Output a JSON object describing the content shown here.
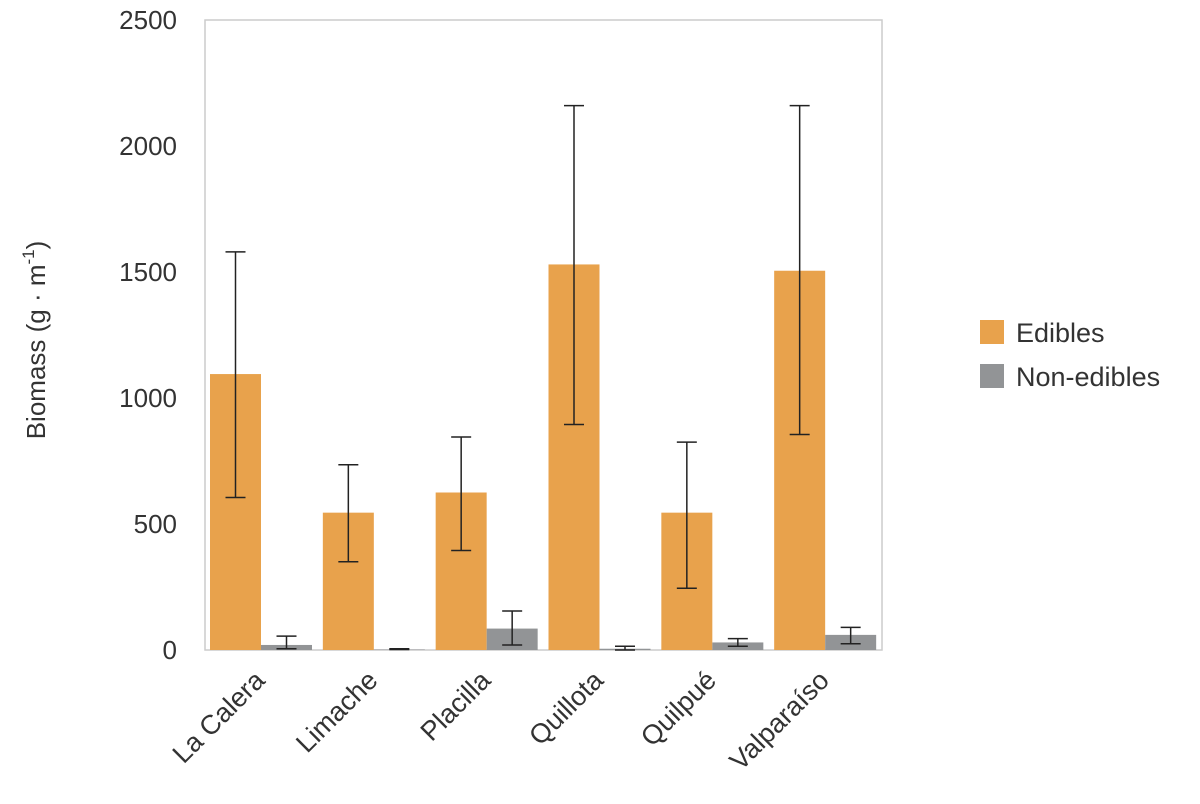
{
  "chart_data": {
    "type": "bar",
    "categories": [
      "La Calera",
      "Limache",
      "Placilla",
      "Quillota",
      "Quilpué",
      "Valparaíso"
    ],
    "series": [
      {
        "name": "Edibles",
        "color": "#E8A24C",
        "values": [
          1095,
          545,
          625,
          1530,
          545,
          1505
        ],
        "error_low": [
          605,
          350,
          395,
          895,
          245,
          855
        ],
        "error_high": [
          1580,
          735,
          845,
          2160,
          825,
          2160
        ]
      },
      {
        "name": "Non-edibles",
        "color": "#929496",
        "values": [
          20,
          2,
          85,
          5,
          30,
          60
        ],
        "error_low": [
          5,
          2,
          20,
          0,
          15,
          25
        ],
        "error_high": [
          55,
          5,
          155,
          15,
          45,
          90
        ]
      }
    ],
    "ylabel_main": "Biomass (g · m",
    "ylabel_sup": "-1",
    "ylabel_close": ")",
    "ylim": [
      0,
      2500
    ],
    "yticks": [
      "0",
      "500",
      "1000",
      "1500",
      "2000",
      "2500"
    ],
    "grid": false,
    "legend_position": "right"
  }
}
